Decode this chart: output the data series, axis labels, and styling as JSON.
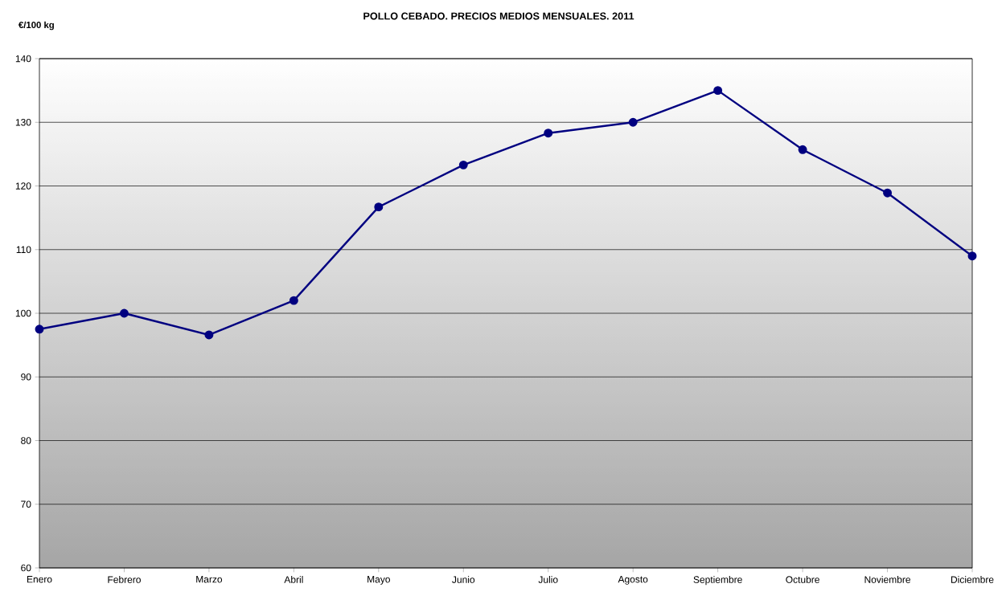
{
  "chart_data": {
    "type": "line",
    "title": "POLLO CEBADO. PRECIOS MEDIOS MENSUALES. 2011",
    "ylabel": "€/100 kg",
    "categories": [
      "Enero",
      "Febrero",
      "Marzo",
      "Abril",
      "Mayo",
      "Junio",
      "Julio",
      "Agosto",
      "Septiembre",
      "Octubre",
      "Noviembre",
      "Diciembre"
    ],
    "values": [
      97.5,
      100,
      96.6,
      102,
      116.7,
      123.3,
      128.3,
      130,
      135,
      125.7,
      118.9,
      109
    ],
    "color": "#000080",
    "marker": "circle",
    "ylim": [
      60,
      140
    ],
    "yticks": [
      60,
      70,
      80,
      90,
      100,
      110,
      120,
      130,
      140
    ],
    "grid": "y"
  }
}
